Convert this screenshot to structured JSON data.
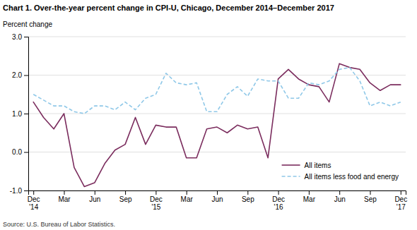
{
  "chart_data": {
    "type": "line",
    "title": "Chart 1. Over-the-year percent change in CPI-U, Chicago, December 2014–December 2017",
    "y_label": "Percent change",
    "source": "Source: U.S. Bureau of Labor Statistics.",
    "categories": [
      "Dec\n'14",
      null,
      null,
      "Mar",
      null,
      null,
      "Jun",
      null,
      null,
      "Sep",
      null,
      null,
      "Dec\n'15",
      null,
      null,
      "Mar",
      null,
      null,
      "Jun",
      null,
      null,
      "Sep",
      null,
      null,
      "Dec\n'16",
      null,
      null,
      "Mar",
      null,
      null,
      "Jun",
      null,
      null,
      "Sep",
      null,
      null,
      "Dec\n'17"
    ],
    "series": [
      {
        "name": "All items",
        "color": "#7b2d5e",
        "line_style": "solid",
        "values": [
          1.3,
          0.9,
          0.6,
          1.0,
          -0.4,
          -0.9,
          -0.8,
          -0.3,
          0.05,
          0.2,
          0.9,
          0.2,
          0.7,
          0.65,
          0.65,
          -0.15,
          -0.15,
          0.6,
          0.65,
          0.5,
          0.7,
          0.6,
          0.65,
          -0.15,
          1.9,
          2.15,
          1.9,
          1.75,
          1.7,
          1.3,
          2.3,
          2.2,
          2.15,
          1.8,
          1.6,
          1.75,
          1.75
        ]
      },
      {
        "name": "All items less food and energy",
        "color": "#8fc8e8",
        "line_style": "dashed",
        "values": [
          1.5,
          1.35,
          1.2,
          1.2,
          1.05,
          1.0,
          1.2,
          1.2,
          1.1,
          1.3,
          1.1,
          1.4,
          1.5,
          2.05,
          1.8,
          1.75,
          1.8,
          1.05,
          1.05,
          1.5,
          1.7,
          1.45,
          1.9,
          1.85,
          1.85,
          1.4,
          1.4,
          1.8,
          1.75,
          1.85,
          2.15,
          2.2,
          1.85,
          1.2,
          1.3,
          1.2,
          1.3
        ]
      }
    ],
    "ylim": [
      -1.0,
      3.0
    ],
    "yticks": [
      {
        "value": -1.0,
        "label": "-1.0"
      },
      {
        "value": 0.0,
        "label": "0.0"
      },
      {
        "value": 1.0,
        "label": "1.0"
      },
      {
        "value": 2.0,
        "label": "2.0"
      },
      {
        "value": 3.0,
        "label": "3.0"
      }
    ],
    "grid": true,
    "legend": "lower right"
  }
}
